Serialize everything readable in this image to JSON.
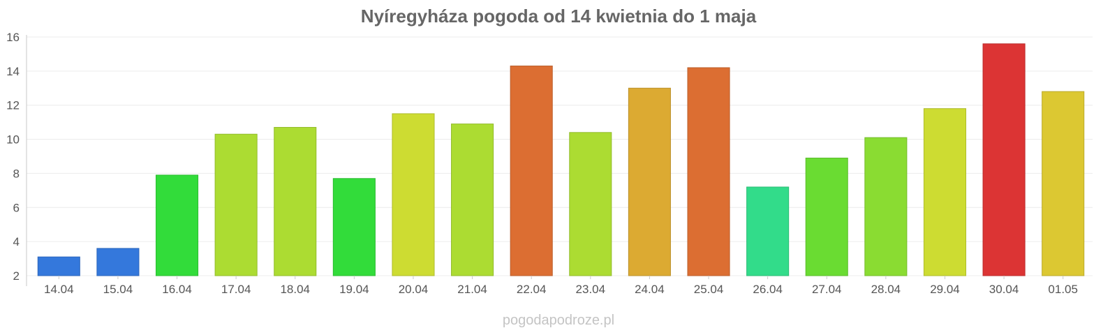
{
  "chart_data": {
    "type": "bar",
    "title": "Nyíregyháza pogoda od 14 kwietnia do 1 maja",
    "xlabel": "",
    "ylabel": "",
    "ylim": [
      2,
      16
    ],
    "yticks": [
      2,
      4,
      6,
      8,
      10,
      12,
      14,
      16
    ],
    "grid": true,
    "legend": "none",
    "categories": [
      "14.04",
      "15.04",
      "16.04",
      "17.04",
      "18.04",
      "19.04",
      "20.04",
      "21.04",
      "22.04",
      "23.04",
      "24.04",
      "25.04",
      "26.04",
      "27.04",
      "28.04",
      "29.04",
      "30.04",
      "01.05"
    ],
    "values": [
      3.1,
      3.6,
      7.9,
      10.3,
      10.7,
      7.7,
      11.5,
      10.9,
      14.3,
      10.4,
      13.0,
      14.2,
      7.2,
      8.9,
      10.1,
      11.8,
      15.6,
      12.8
    ],
    "colors": [
      "#3478dc",
      "#3478dc",
      "#32dc3a",
      "#acdc32",
      "#acdc32",
      "#32dc3a",
      "#cddc32",
      "#acdc32",
      "#dc6e32",
      "#acdc32",
      "#dcaa32",
      "#dc6e32",
      "#32dc8a",
      "#6adc32",
      "#8adc32",
      "#cddc32",
      "#dc3434",
      "#dcc832"
    ]
  },
  "watermark": "pogodapodroze.pl"
}
